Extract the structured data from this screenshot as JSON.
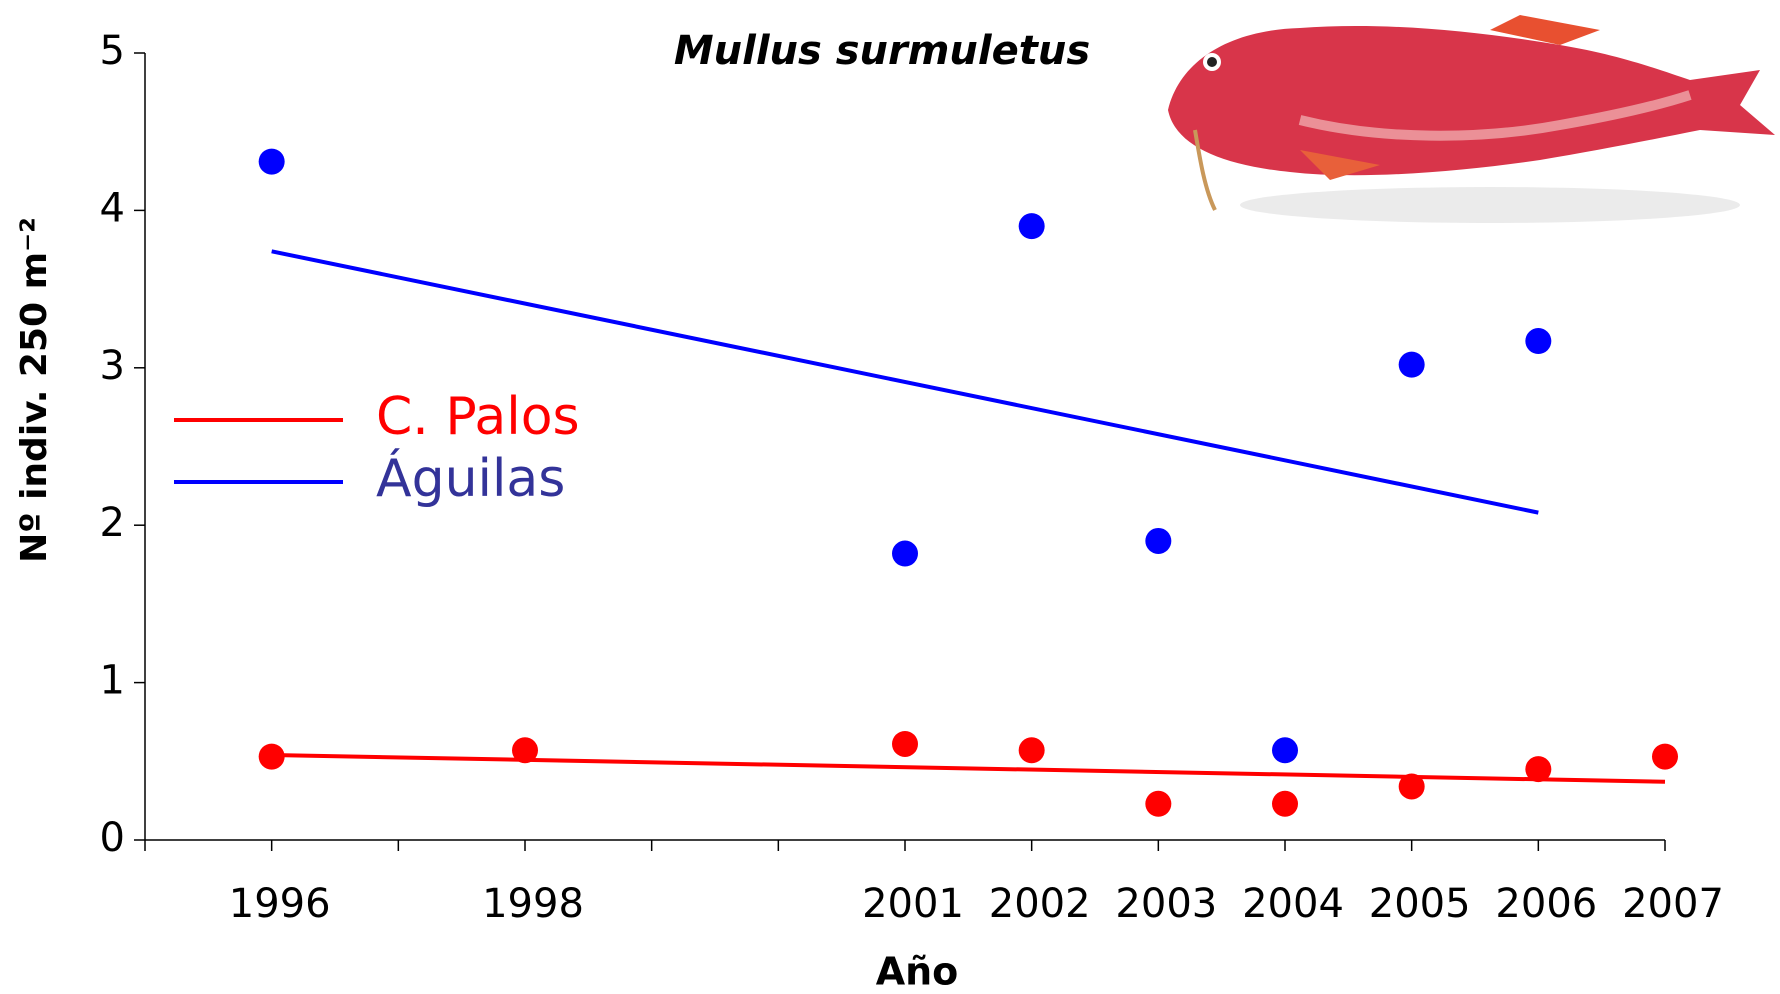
{
  "chart_data": {
    "type": "scatter",
    "title": "Mullus surmuletus",
    "xlabel": "Año",
    "ylabel": "Nº indiv. 250 m⁻²",
    "xlim": [
      1995,
      2007
    ],
    "xticks": [
      1996,
      1998,
      2001,
      2002,
      2003,
      2004,
      2005,
      2006,
      2007
    ],
    "x_minor_ticks": [
      1995,
      1997,
      1999,
      2000
    ],
    "ylim": [
      0,
      5
    ],
    "yticks": [
      0,
      1,
      2,
      3,
      4,
      5
    ],
    "grid": false,
    "legend": "left",
    "series": [
      {
        "name": "C. Palos",
        "color": "#ff0000",
        "label_color": "#ff0000",
        "x": [
          1996,
          1998,
          2001,
          2002,
          2003,
          2004,
          2005,
          2006,
          2007
        ],
        "values": [
          0.53,
          0.57,
          0.61,
          0.57,
          0.23,
          0.23,
          0.34,
          0.45,
          0.53
        ],
        "trend": {
          "x": [
            1996,
            2007
          ],
          "values": [
            0.54,
            0.37
          ]
        }
      },
      {
        "name": "Águilas",
        "color": "#0000ff",
        "label_color": "#333399",
        "x": [
          1996,
          2001,
          2002,
          2003,
          2004,
          2005,
          2006
        ],
        "values": [
          4.31,
          1.82,
          3.9,
          1.9,
          0.57,
          3.02,
          3.17
        ],
        "trend": {
          "x": [
            1996,
            2006
          ],
          "values": [
            3.74,
            2.08
          ]
        }
      }
    ]
  }
}
